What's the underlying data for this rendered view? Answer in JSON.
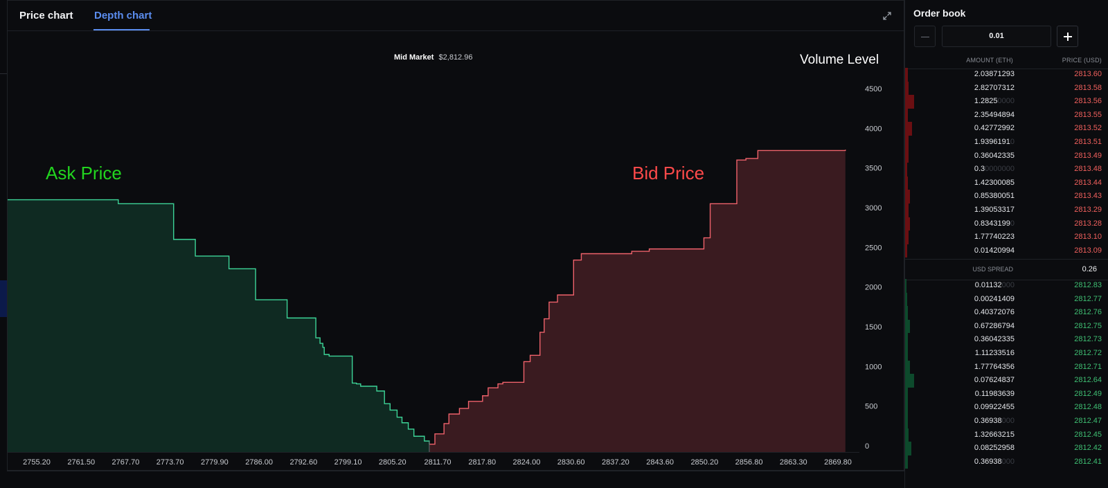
{
  "tabs": {
    "price_label": "Price chart",
    "depth_label": "Depth chart"
  },
  "mid_market": {
    "label": "Mid Market",
    "value": "$2,812.96"
  },
  "annotations": {
    "volume_level": "Volume Level",
    "ask_price": "Ask Price",
    "bid_price": "Bid Price"
  },
  "colors": {
    "ask_line": "#3dd598",
    "ask_fill": "#0f2a22",
    "bid_line": "#f0626b",
    "bid_fill": "#3a1b20",
    "accent": "#5b8def"
  },
  "chart_data": {
    "type": "area",
    "title": "",
    "xlabel": "",
    "ylabel": "Volume Level",
    "x_ticks": [
      "2755.20",
      "2761.50",
      "2767.70",
      "2773.70",
      "2779.90",
      "2786.00",
      "2792.60",
      "2799.10",
      "2805.20",
      "2811.70",
      "2817.80",
      "2824.00",
      "2830.60",
      "2837.20",
      "2843.60",
      "2850.20",
      "2856.80",
      "2863.30",
      "2869.80"
    ],
    "y_ticks": [
      0,
      500,
      1000,
      1500,
      2000,
      2500,
      3000,
      3500,
      4000,
      4500
    ],
    "xlim": [
      2752,
      2873.6
    ],
    "ylim": [
      0,
      4500
    ],
    "series": [
      {
        "name": "Ask Price",
        "x": [
          2752,
          2767.5,
          2767.8,
          2775.7,
          2775.7,
          2778.8,
          2778.8,
          2783.6,
          2783.6,
          2787.4,
          2787.4,
          2791.9,
          2791.9,
          2796.0,
          2796.0,
          2796.6,
          2797.0,
          2797.2,
          2797.9,
          2801.2,
          2801.2,
          2801.8,
          2802.4,
          2804.7,
          2805.8,
          2806.6,
          2807.6,
          2808.3,
          2809.2,
          2810.0,
          2811.5,
          2812.2
        ],
        "y": [
          3100,
          3100,
          3050,
          3040,
          2600,
          2580,
          2390,
          2360,
          2230,
          2220,
          1840,
          1820,
          1610,
          1420,
          1360,
          1290,
          1240,
          1150,
          1130,
          920,
          790,
          780,
          750,
          690,
          530,
          450,
          360,
          290,
          210,
          120,
          60,
          20
        ]
      },
      {
        "name": "Bid Price",
        "x": [
          2812.2,
          2813.0,
          2814.3,
          2815.0,
          2816.5,
          2817.8,
          2819.8,
          2820.6,
          2822.0,
          2822.7,
          2825.7,
          2826.6,
          2828.0,
          2828.6,
          2829.3,
          2830.5,
          2832.8,
          2833.9,
          2841.1,
          2843.6,
          2851.4,
          2852.3,
          2856.1,
          2857.4,
          2859.1,
          2871.6
        ],
        "y": [
          20,
          150,
          280,
          400,
          470,
          560,
          630,
          730,
          780,
          800,
          1060,
          1140,
          1430,
          1600,
          1810,
          1900,
          2340,
          2420,
          2450,
          2480,
          2620,
          3050,
          3600,
          3620,
          3720,
          3730
        ]
      }
    ]
  },
  "orderbook": {
    "title": "Order book",
    "increment": "0.01",
    "amount_header": "AMOUNT (ETH)",
    "price_header": "PRICE (USD)",
    "asks": [
      {
        "amount": "2.03871293",
        "amount_pad": "",
        "price": "2813.60",
        "depth": 0.3
      },
      {
        "amount": "2.82707312",
        "amount_pad": "",
        "price": "2813.58",
        "depth": 0.35
      },
      {
        "amount": "1.2825",
        "amount_pad": "0000",
        "price": "2813.56",
        "depth": 1.0
      },
      {
        "amount": "2.35494894",
        "amount_pad": "",
        "price": "2813.55",
        "depth": 0.3
      },
      {
        "amount": "0.42772992",
        "amount_pad": "",
        "price": "2813.52",
        "depth": 0.8
      },
      {
        "amount": "1.9396191",
        "amount_pad": "0",
        "price": "2813.51",
        "depth": 0.35
      },
      {
        "amount": "0.36042335",
        "amount_pad": "",
        "price": "2813.49",
        "depth": 0.35
      },
      {
        "amount": "0.3",
        "amount_pad": "0000000",
        "price": "2813.48",
        "depth": 0.25
      },
      {
        "amount": "1.42300085",
        "amount_pad": "",
        "price": "2813.44",
        "depth": 0.3
      },
      {
        "amount": "0.85380051",
        "amount_pad": "",
        "price": "2813.43",
        "depth": 0.5
      },
      {
        "amount": "1.39053317",
        "amount_pad": "",
        "price": "2813.29",
        "depth": 0.35
      },
      {
        "amount": "0.8343199",
        "amount_pad": "0",
        "price": "2813.28",
        "depth": 0.55
      },
      {
        "amount": "1.77740223",
        "amount_pad": "",
        "price": "2813.10",
        "depth": 0.35
      },
      {
        "amount": "0.01420994",
        "amount_pad": "",
        "price": "2813.09",
        "depth": 0.2
      }
    ],
    "spread_label": "USD SPREAD",
    "spread_value": "0.26",
    "bids": [
      {
        "amount": "0.01132",
        "amount_pad": "000",
        "price": "2812.83",
        "depth": 0.15
      },
      {
        "amount": "0.00241409",
        "amount_pad": "",
        "price": "2812.77",
        "depth": 0.25
      },
      {
        "amount": "0.40372076",
        "amount_pad": "",
        "price": "2812.76",
        "depth": 0.3
      },
      {
        "amount": "0.67286794",
        "amount_pad": "",
        "price": "2812.75",
        "depth": 0.55
      },
      {
        "amount": "0.36042335",
        "amount_pad": "",
        "price": "2812.73",
        "depth": 0.3
      },
      {
        "amount": "1.11233516",
        "amount_pad": "",
        "price": "2812.72",
        "depth": 0.3
      },
      {
        "amount": "1.77764356",
        "amount_pad": "",
        "price": "2812.71",
        "depth": 0.5
      },
      {
        "amount": "0.07624837",
        "amount_pad": "",
        "price": "2812.64",
        "depth": 1.0
      },
      {
        "amount": "0.11983639",
        "amount_pad": "",
        "price": "2812.49",
        "depth": 0.3
      },
      {
        "amount": "0.09922455",
        "amount_pad": "",
        "price": "2812.48",
        "depth": 0.3
      },
      {
        "amount": "0.36938",
        "amount_pad": "000",
        "price": "2812.47",
        "depth": 0.3
      },
      {
        "amount": "1.32663215",
        "amount_pad": "",
        "price": "2812.45",
        "depth": 0.35
      },
      {
        "amount": "0.08252958",
        "amount_pad": "",
        "price": "2812.42",
        "depth": 0.7
      },
      {
        "amount": "0.36938",
        "amount_pad": "000",
        "price": "2812.41",
        "depth": 0.3
      }
    ]
  }
}
